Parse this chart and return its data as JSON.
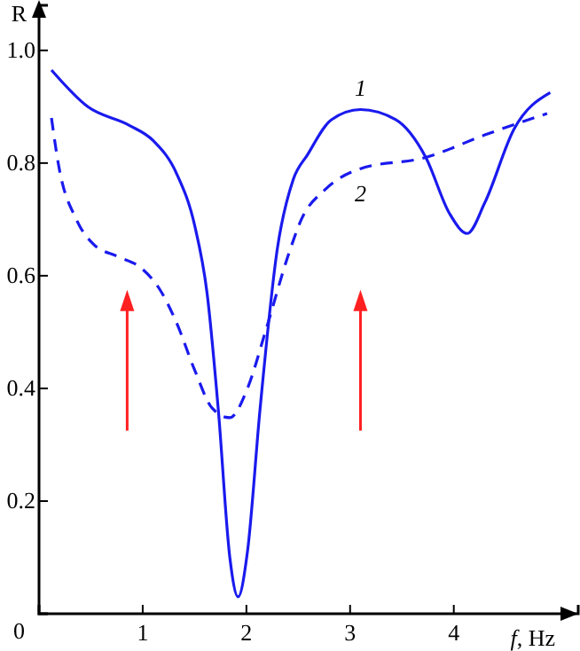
{
  "chart_data": {
    "type": "line",
    "xlabel": "f, Hz",
    "ylabel": "R",
    "xlim": [
      0,
      5.2
    ],
    "ylim": [
      0,
      1.08
    ],
    "xticks": [
      1,
      2,
      3,
      4
    ],
    "yticks": [
      {
        "value": 0,
        "label": "0"
      },
      0.2,
      0.4,
      0.6,
      0.8,
      {
        "value": 1.0,
        "label": "1.0"
      }
    ],
    "grid": false,
    "marker": "none",
    "series": [
      {
        "name": "1",
        "color": "#1a1aee",
        "line_style": "solid",
        "x": [
          0.12,
          0.47,
          0.87,
          1.1,
          1.33,
          1.5,
          1.62,
          1.73,
          1.84,
          1.92,
          2.01,
          2.13,
          2.3,
          2.45,
          2.59,
          2.82,
          3.1,
          3.44,
          3.73,
          3.96,
          4.13,
          4.3,
          4.58,
          4.93
        ],
        "values": [
          0.965,
          0.9,
          0.867,
          0.84,
          0.78,
          0.69,
          0.57,
          0.36,
          0.1,
          0.03,
          0.11,
          0.36,
          0.65,
          0.77,
          0.815,
          0.877,
          0.895,
          0.877,
          0.81,
          0.71,
          0.675,
          0.73,
          0.86,
          0.925
        ]
      },
      {
        "name": "2",
        "color": "#1a1aee",
        "line_style": "dashed",
        "x": [
          0.12,
          0.19,
          0.36,
          0.53,
          0.76,
          0.99,
          1.16,
          1.33,
          1.5,
          1.67,
          1.84,
          2.01,
          2.19,
          2.41,
          2.53,
          2.76,
          3.1,
          3.73,
          4.3,
          4.9
        ],
        "values": [
          0.88,
          0.795,
          0.7,
          0.655,
          0.634,
          0.613,
          0.577,
          0.515,
          0.433,
          0.365,
          0.348,
          0.4,
          0.505,
          0.64,
          0.7,
          0.753,
          0.79,
          0.81,
          0.85,
          0.888
        ]
      }
    ]
  }
}
